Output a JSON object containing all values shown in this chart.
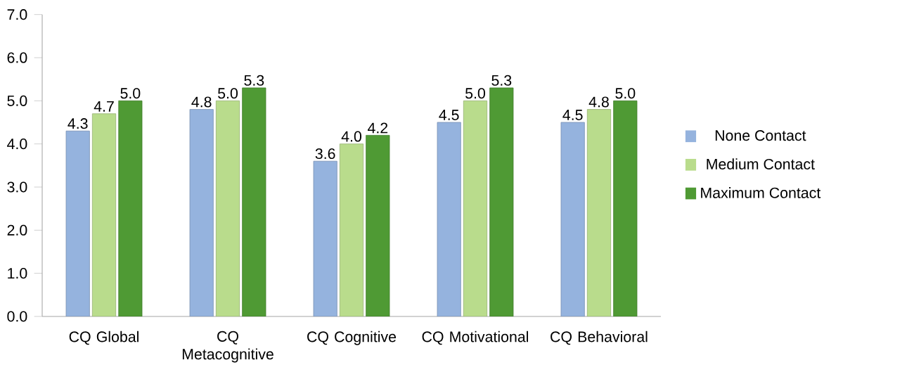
{
  "chart_data": {
    "type": "bar",
    "categories": [
      "CQ Global",
      "CQ Metacognitive",
      "CQ Cognitive",
      "CQ Motivational",
      "CQ Behavioral"
    ],
    "series": [
      {
        "name": "None Contact",
        "color": "#95b3de",
        "values": [
          4.3,
          4.8,
          3.6,
          4.5,
          4.5
        ],
        "value_labels": [
          "4.3",
          "4.8",
          "3.6",
          "4.5",
          "4.5"
        ]
      },
      {
        "name": "Medium Contact",
        "color": "#b9dc8c",
        "values": [
          4.7,
          5.0,
          4.0,
          5.0,
          4.8
        ],
        "value_labels": [
          "4.7",
          "5.0",
          "4.0",
          "5.0",
          "4.8"
        ]
      },
      {
        "name": "Maximum Contact",
        "color": "#4f9a34",
        "values": [
          5.0,
          5.3,
          4.2,
          5.3,
          5.0
        ],
        "value_labels": [
          "5.0",
          "5.3",
          "4.2",
          "5.3",
          "5.0"
        ]
      }
    ],
    "ylim": [
      0,
      7
    ],
    "yticks": [
      {
        "value": 0,
        "label": "0.0"
      },
      {
        "value": 1,
        "label": "1.0"
      },
      {
        "value": 2,
        "label": "2.0"
      },
      {
        "value": 3,
        "label": "3.0"
      },
      {
        "value": 4,
        "label": "4.0"
      },
      {
        "value": 5,
        "label": "5.0"
      },
      {
        "value": 6,
        "label": "6.0"
      },
      {
        "value": 7,
        "label": "7.0"
      }
    ],
    "legend": "right"
  }
}
